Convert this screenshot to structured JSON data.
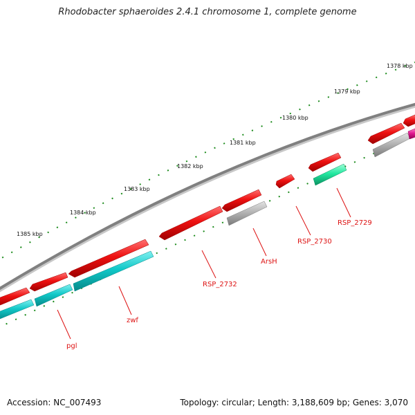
{
  "title": "Rhodobacter sphaeroides 2.4.1 chromosome 1, complete genome",
  "accession": "Accession: NC_007493",
  "summary": "Topology: circular; Length: 3,188,609 bp; Genes: 3,070",
  "colors": {
    "backbone": "#808080",
    "gene_red": "#ee1111",
    "gene_cyan": "#11c8c8",
    "gene_grey": "#b4b4b4",
    "gene_green": "#22e8a0",
    "gene_magenta": "#e01890",
    "tick": "#1a8a1a",
    "label": "#dd1111"
  },
  "ticks": [
    {
      "label": "1378 kbp"
    },
    {
      "label": "1379 kbp"
    },
    {
      "label": "1380 kbp"
    },
    {
      "label": "1381 kbp"
    },
    {
      "label": "1382 kbp"
    },
    {
      "label": "1383 kbp"
    },
    {
      "label": "1384 kbp"
    },
    {
      "label": "1385 kbp"
    }
  ],
  "gene_labels": [
    {
      "text": "RSP_2729"
    },
    {
      "text": "RSP_2730"
    },
    {
      "text": "ArsH"
    },
    {
      "text": "RSP_2732"
    },
    {
      "text": "zwf"
    },
    {
      "text": "pgl"
    }
  ]
}
